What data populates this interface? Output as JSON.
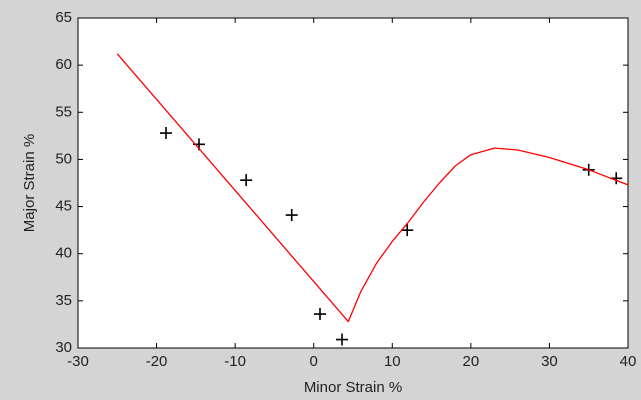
{
  "chart_data": {
    "type": "scatter",
    "xlabel": "Minor Strain %",
    "ylabel": "Major Strain %",
    "xlim": [
      -30,
      40
    ],
    "xticks": [
      -30,
      -20,
      -10,
      0,
      10,
      20,
      30,
      40
    ],
    "ylim": [
      30,
      65
    ],
    "yticks": [
      30,
      35,
      40,
      45,
      50,
      55,
      60,
      65
    ],
    "grid": false,
    "series": [
      {
        "type": "scatter",
        "color": "#000000",
        "x": [
          -18.8,
          -14.6,
          -8.6,
          -2.8,
          0.8,
          3.6,
          11.9,
          35,
          38.5
        ],
        "values": [
          52.8,
          51.6,
          47.8,
          44.1,
          33.6,
          30.9,
          42.5,
          48.9,
          48.0
        ]
      },
      {
        "type": "line",
        "color": "#ff0000",
        "x": [
          -25,
          4.4,
          6,
          8,
          10,
          12,
          14,
          16,
          18,
          20,
          23,
          26,
          30,
          35,
          40
        ],
        "values": [
          61.2,
          32.8,
          36,
          39,
          41.3,
          43.3,
          45.5,
          47.5,
          49.3,
          50.5,
          51.2,
          51,
          50.2,
          48.9,
          47.3
        ]
      }
    ]
  }
}
